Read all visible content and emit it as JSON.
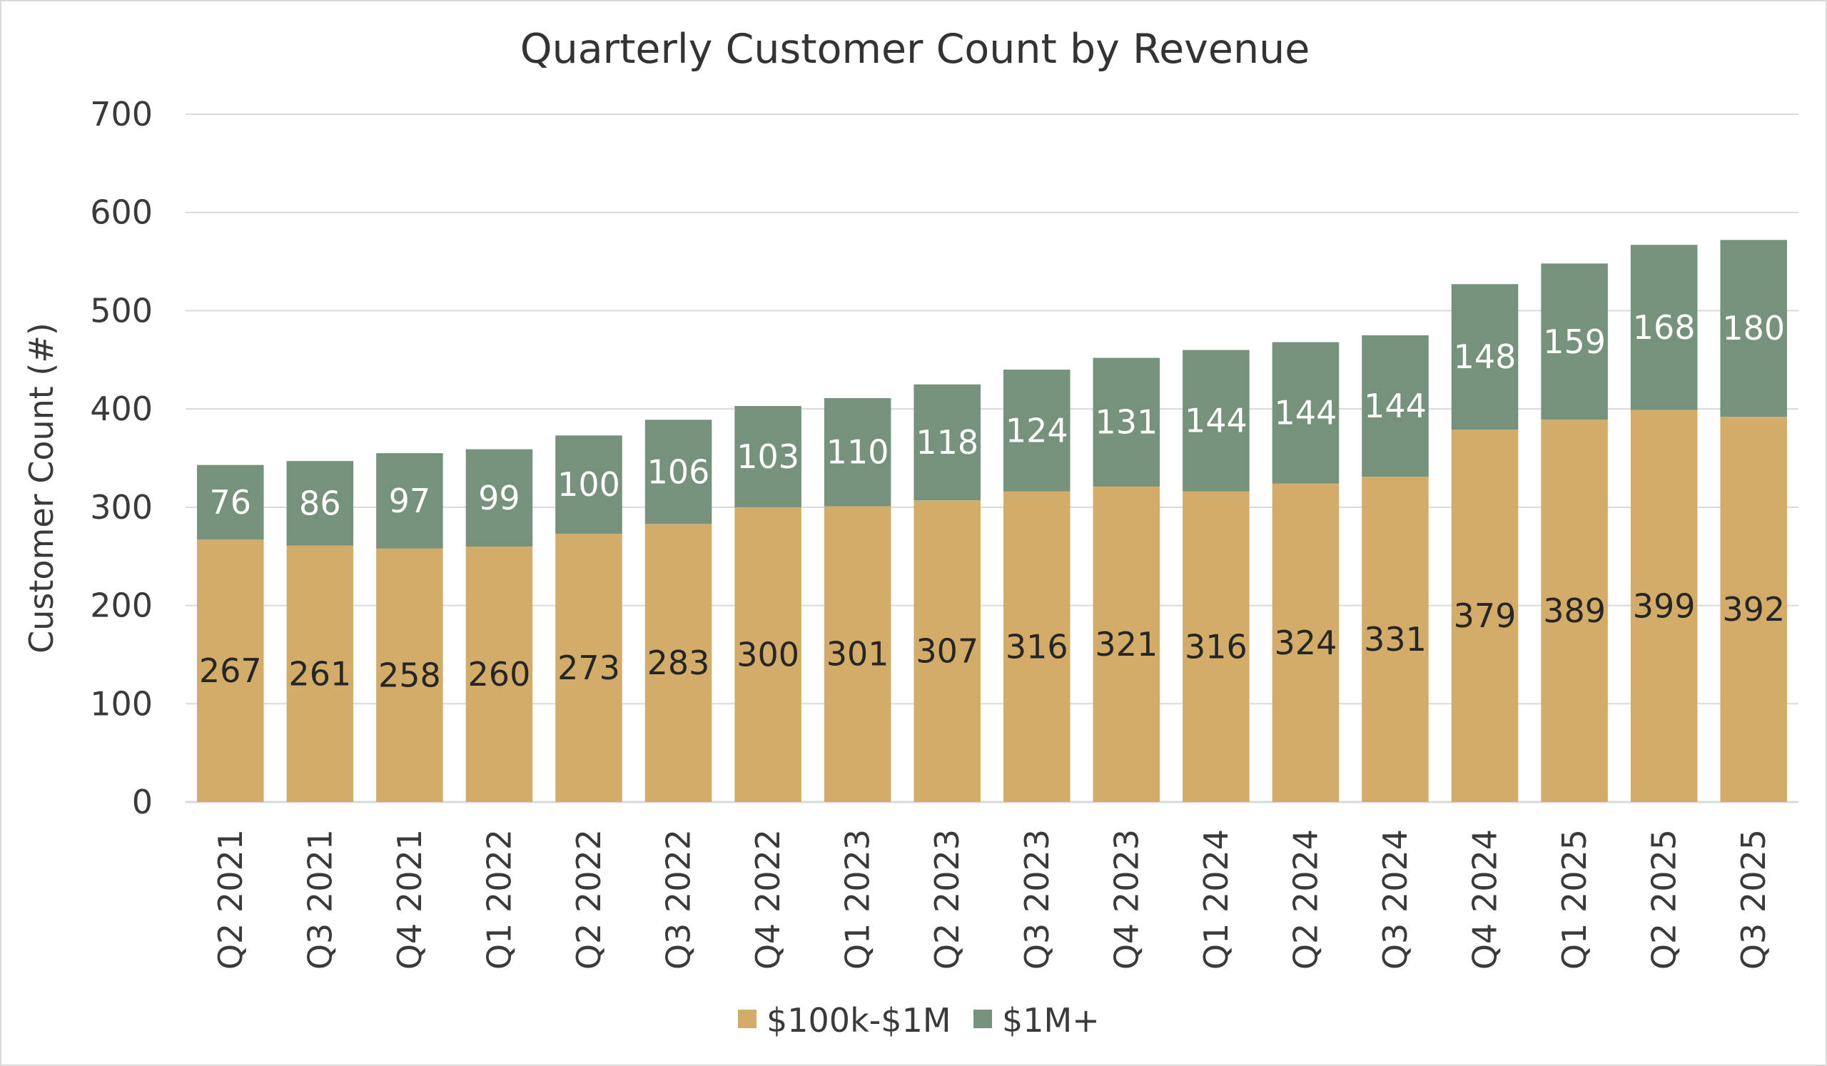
{
  "chart_data": {
    "type": "bar",
    "stacked": true,
    "title": "Quarterly Customer Count by Revenue",
    "ylabel": "Customer Count (#)",
    "xlabel": "",
    "ylim": [
      0,
      700
    ],
    "yticks": [
      0,
      100,
      200,
      300,
      400,
      500,
      600,
      700
    ],
    "grid": true,
    "legend_position": "bottom",
    "categories": [
      "Q2 2021",
      "Q3 2021",
      "Q4 2021",
      "Q1 2022",
      "Q2 2022",
      "Q3 2022",
      "Q4 2022",
      "Q1 2023",
      "Q2 2023",
      "Q3 2023",
      "Q4 2023",
      "Q1 2024",
      "Q2 2024",
      "Q3 2024",
      "Q4 2024",
      "Q1 2025",
      "Q2 2025",
      "Q3 2025"
    ],
    "series": [
      {
        "name": "$100k-$1M",
        "color": "#D4AC6A",
        "label_color": "#262626",
        "values": [
          267,
          261,
          258,
          260,
          273,
          283,
          300,
          301,
          307,
          316,
          321,
          316,
          324,
          331,
          379,
          389,
          399,
          392
        ]
      },
      {
        "name": "$1M+",
        "color": "#76917C",
        "label_color": "#ffffff",
        "values": [
          76,
          86,
          97,
          99,
          100,
          106,
          103,
          110,
          118,
          124,
          131,
          144,
          144,
          144,
          148,
          159,
          168,
          180
        ]
      }
    ]
  },
  "colors": {
    "gridline": "#d9d9d9",
    "axis_line": "#d9d9d9",
    "text": "#3a3a3a"
  }
}
